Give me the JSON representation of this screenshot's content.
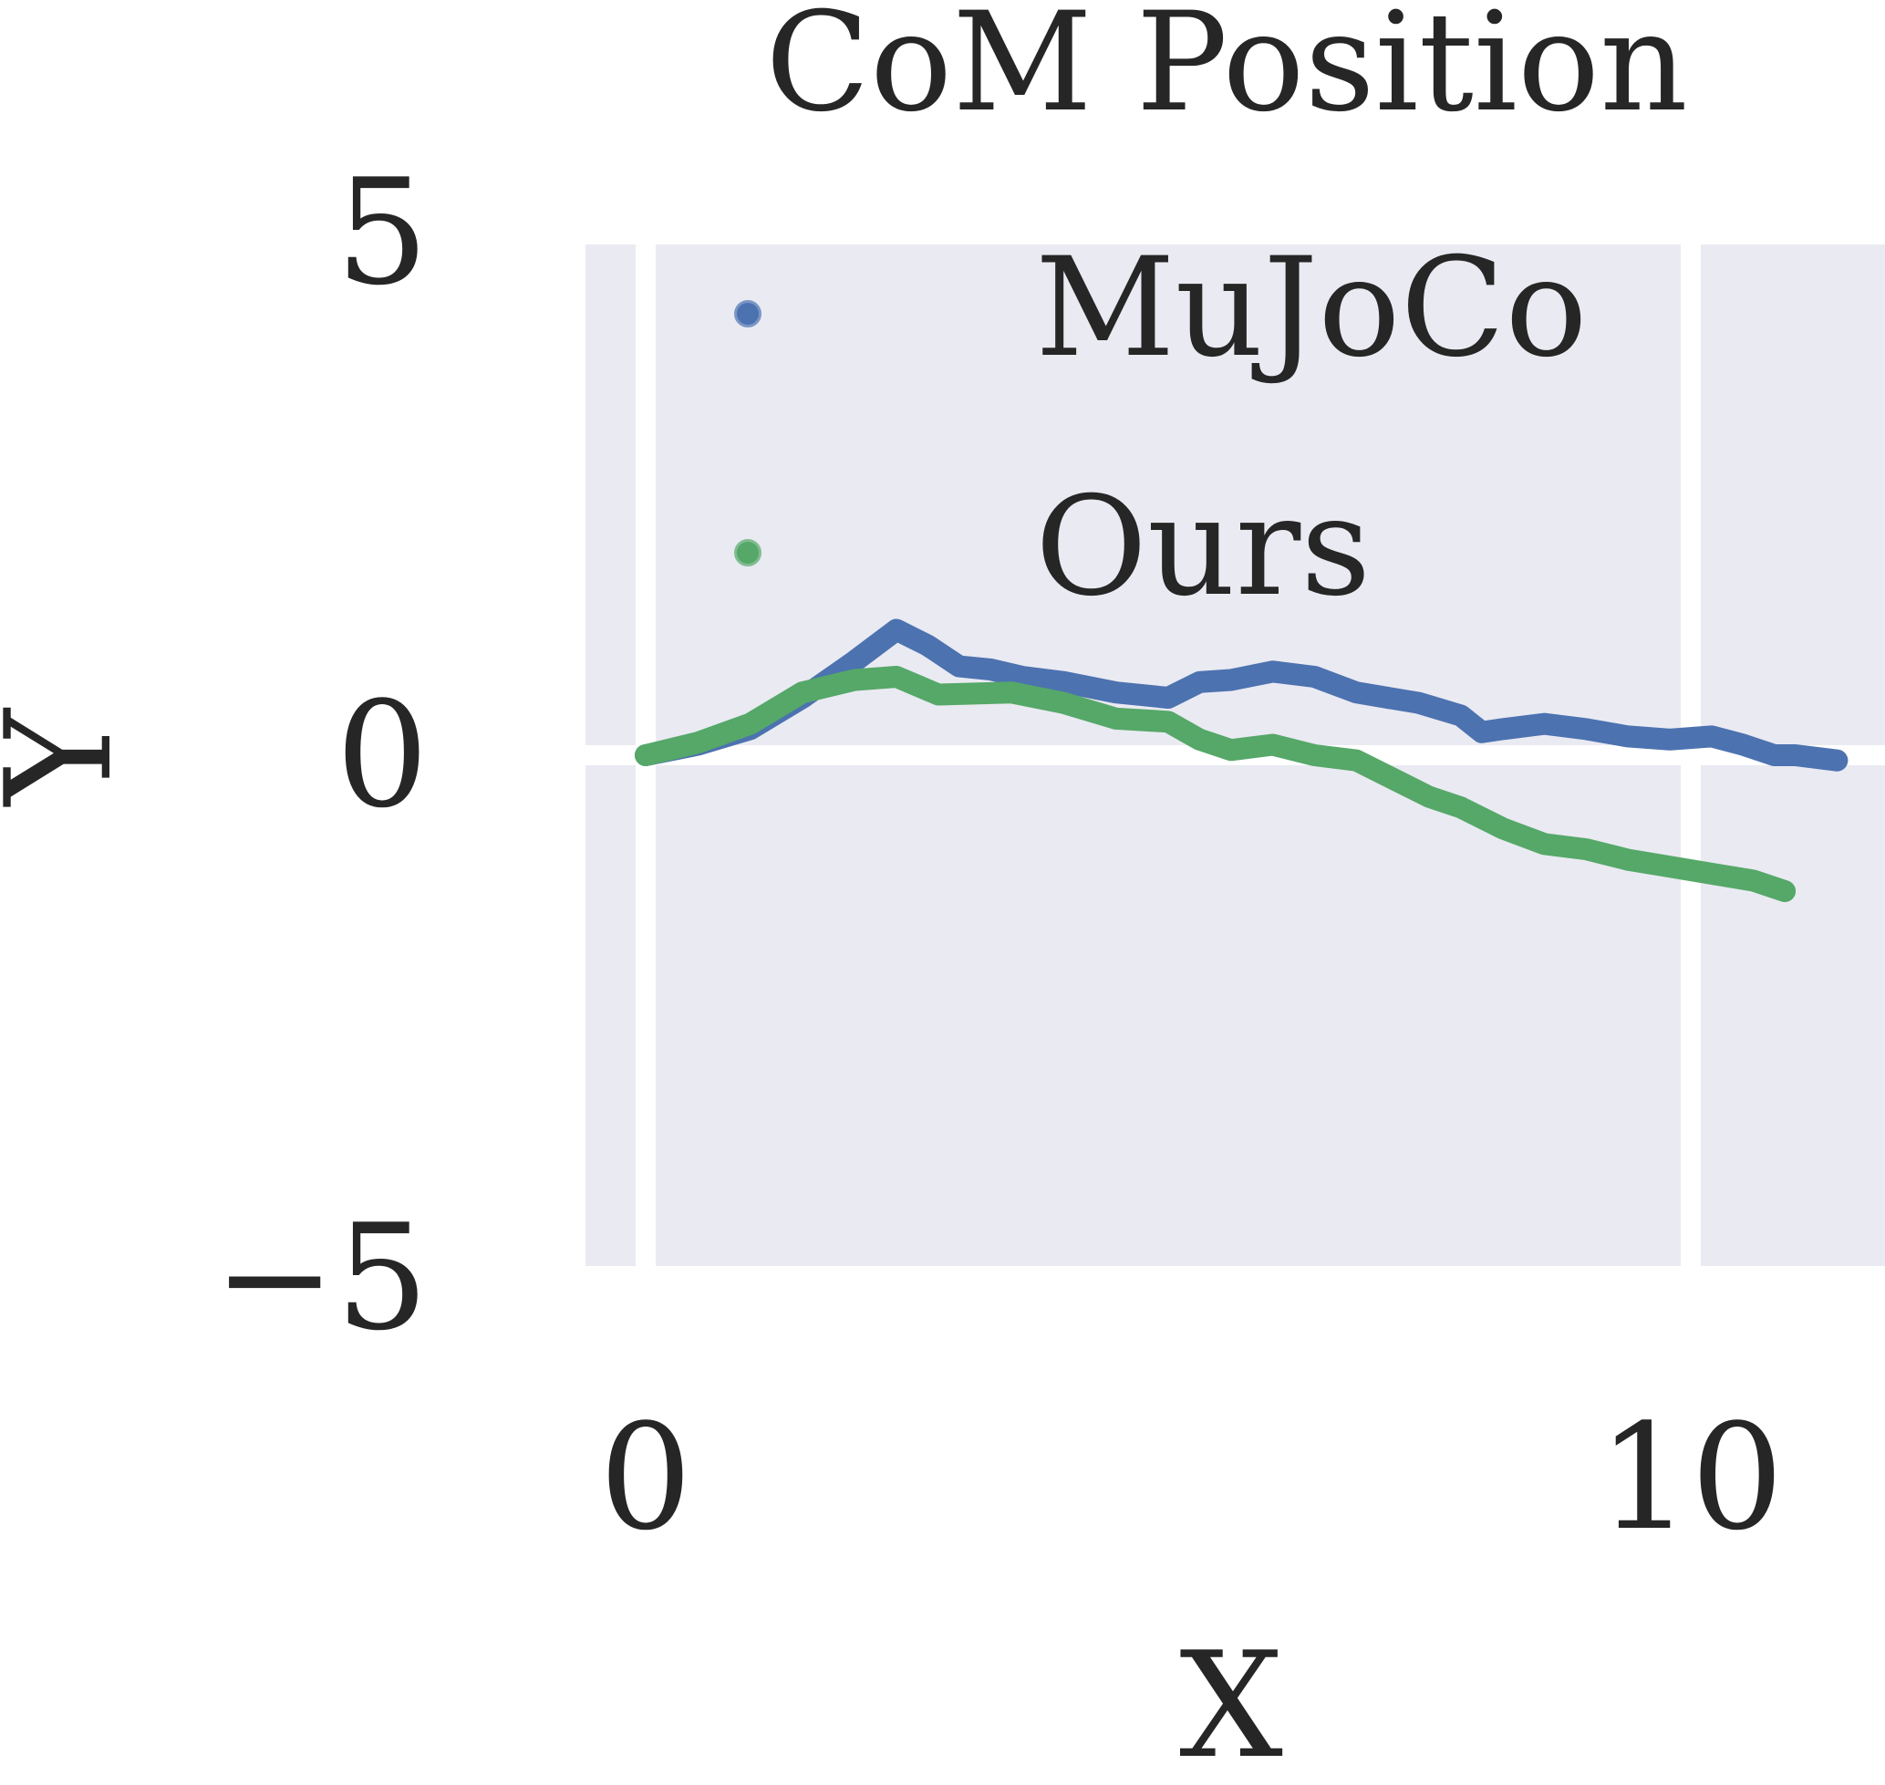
{
  "chart_data": {
    "type": "line",
    "title": "CoM Position",
    "xlabel": "X",
    "ylabel": "Y",
    "xlim": [
      -0.6,
      12
    ],
    "ylim": [
      -5,
      5
    ],
    "x_ticks": [
      0,
      10
    ],
    "x_tick_labels": [
      "0",
      "10"
    ],
    "y_ticks": [
      5,
      0,
      -5
    ],
    "y_tick_labels": [
      "5",
      "0",
      "−5"
    ],
    "grid": true,
    "legend_placement": "top-right",
    "series": [
      {
        "name": "MuJoCo",
        "color": "#4c72b0",
        "x": [
          0.0,
          0.5,
          1.0,
          1.5,
          2.0,
          2.4,
          2.7,
          3.0,
          3.3,
          3.6,
          4.0,
          4.5,
          5.0,
          5.3,
          5.6,
          6.0,
          6.4,
          6.8,
          7.1,
          7.4,
          7.8,
          8.0,
          8.2,
          8.6,
          9.0,
          9.4,
          9.8,
          10.2,
          10.5,
          10.8,
          11.0,
          11.4
        ],
        "y": [
          0.0,
          0.1,
          0.25,
          0.55,
          0.9,
          1.2,
          1.05,
          0.85,
          0.82,
          0.75,
          0.7,
          0.6,
          0.55,
          0.7,
          0.72,
          0.8,
          0.75,
          0.6,
          0.55,
          0.5,
          0.38,
          0.22,
          0.25,
          0.3,
          0.25,
          0.18,
          0.15,
          0.18,
          0.1,
          0.0,
          0.0,
          -0.05
        ]
      },
      {
        "name": "Ours",
        "color": "#55a868",
        "x": [
          0.0,
          0.5,
          1.0,
          1.5,
          2.0,
          2.4,
          2.8,
          3.5,
          4.0,
          4.5,
          5.0,
          5.3,
          5.6,
          6.0,
          6.4,
          6.8,
          7.2,
          7.5,
          7.8,
          8.2,
          8.6,
          9.0,
          9.4,
          9.7,
          10.0,
          10.3,
          10.6,
          10.9
        ],
        "y": [
          0.0,
          0.12,
          0.3,
          0.6,
          0.72,
          0.75,
          0.58,
          0.6,
          0.5,
          0.35,
          0.32,
          0.15,
          0.05,
          0.1,
          0.0,
          -0.05,
          -0.25,
          -0.4,
          -0.5,
          -0.7,
          -0.85,
          -0.9,
          -1.0,
          -1.05,
          -1.1,
          -1.15,
          -1.2,
          -1.3
        ]
      }
    ]
  }
}
